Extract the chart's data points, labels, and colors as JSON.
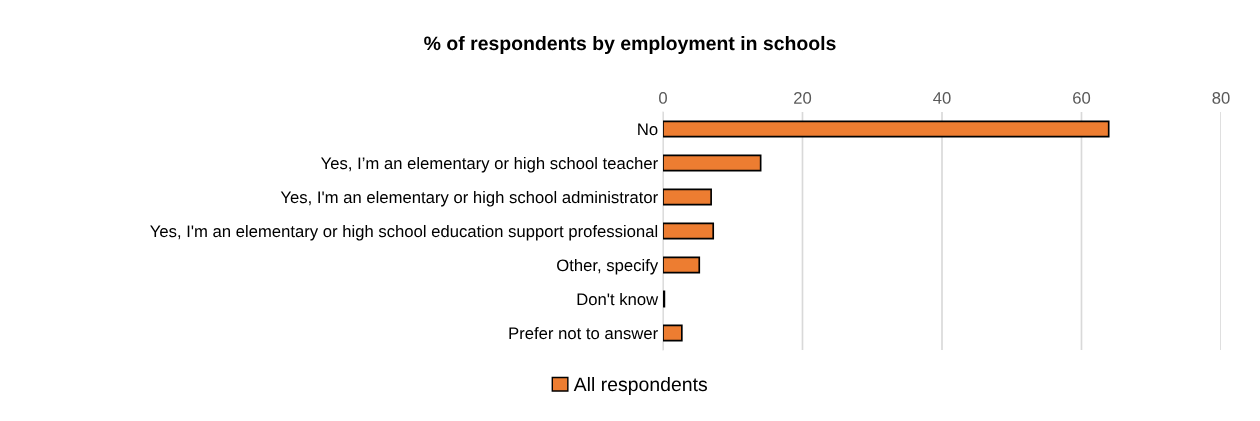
{
  "chart_data": {
    "type": "bar",
    "orientation": "horizontal",
    "title": "% of respondents by employment in schools",
    "categories": [
      "No",
      "Yes, I’m an elementary or high school teacher",
      "Yes, I'm an elementary or high school administrator",
      "Yes, I'm an elementary or high school education support professional",
      "Other, specify",
      "Don't know",
      "Prefer not to answer"
    ],
    "series": [
      {
        "name": "All respondents",
        "color": "#ed7d31",
        "values": [
          63.9,
          14.0,
          6.9,
          7.2,
          5.2,
          0.2,
          2.7
        ]
      }
    ],
    "xlim": [
      0,
      80
    ],
    "xticks": [
      0,
      20,
      40,
      60,
      80
    ],
    "grid": "x",
    "legend": "bottom"
  }
}
